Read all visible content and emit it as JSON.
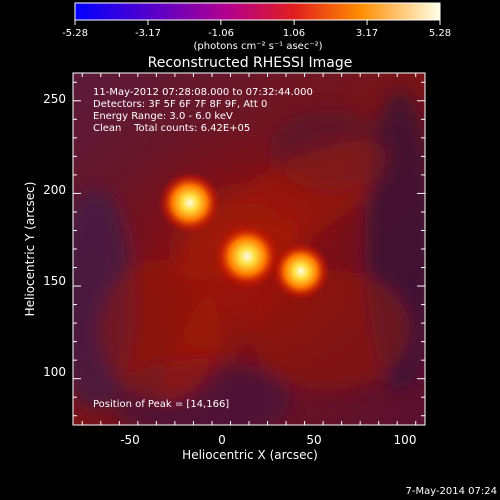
{
  "chart_data": {
    "type": "heatmap",
    "title": "Reconstructed RHESSI Image",
    "xlabel": "Heliocentric X (arcsec)",
    "ylabel": "Heliocentric Y (arcsec)",
    "xlim": [
      -80,
      110
    ],
    "ylim": [
      75,
      265
    ],
    "x_ticks": [
      -50,
      0,
      50,
      100
    ],
    "y_ticks": [
      100,
      150,
      200,
      250
    ],
    "colorbar": {
      "ticks": [
        "-5.28",
        "-3.17",
        "-1.06",
        "1.06",
        "3.17",
        "5.28"
      ],
      "unit_label": "(photons cm⁻² s⁻¹ asec⁻²)",
      "range": [
        -5.28,
        5.28
      ]
    },
    "annotations": [
      "11-May-2012 07:28:08.000 to 07:32:44.000",
      "Detectors: 3F 5F 6F 7F 8F 9F, Att 0",
      "Energy Range: 3.0 - 6.0 keV",
      "Clean    Total counts: 6.42E+05"
    ],
    "peak_label": "Position of Peak = [14,166]",
    "sources": [
      {
        "x": -17,
        "y": 195,
        "intensity": 4.8
      },
      {
        "x": 14,
        "y": 166,
        "intensity": 5.28
      },
      {
        "x": 43,
        "y": 158,
        "intensity": 4.2
      }
    ],
    "grid": false
  },
  "footer": {
    "date": "7-May-2014 07:24"
  }
}
